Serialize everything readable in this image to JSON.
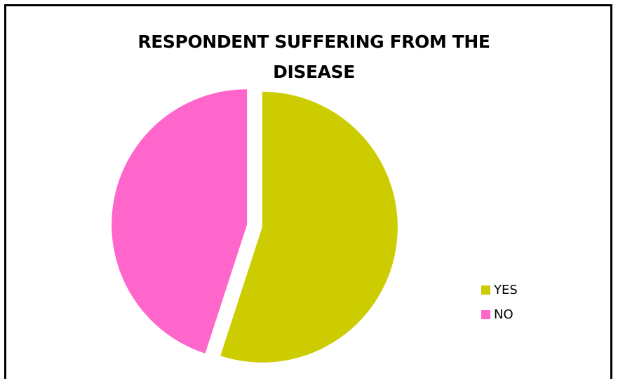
{
  "chart_data": {
    "type": "pie",
    "title_lines": [
      "RESPONDENT SUFFERING FROM THE",
      "DISEASE"
    ],
    "categories": [
      "YES",
      "NO"
    ],
    "values": [
      55,
      45
    ],
    "colors": [
      "#cccc00",
      "#ff66cc"
    ],
    "exploded": true,
    "legend_position": "right"
  }
}
